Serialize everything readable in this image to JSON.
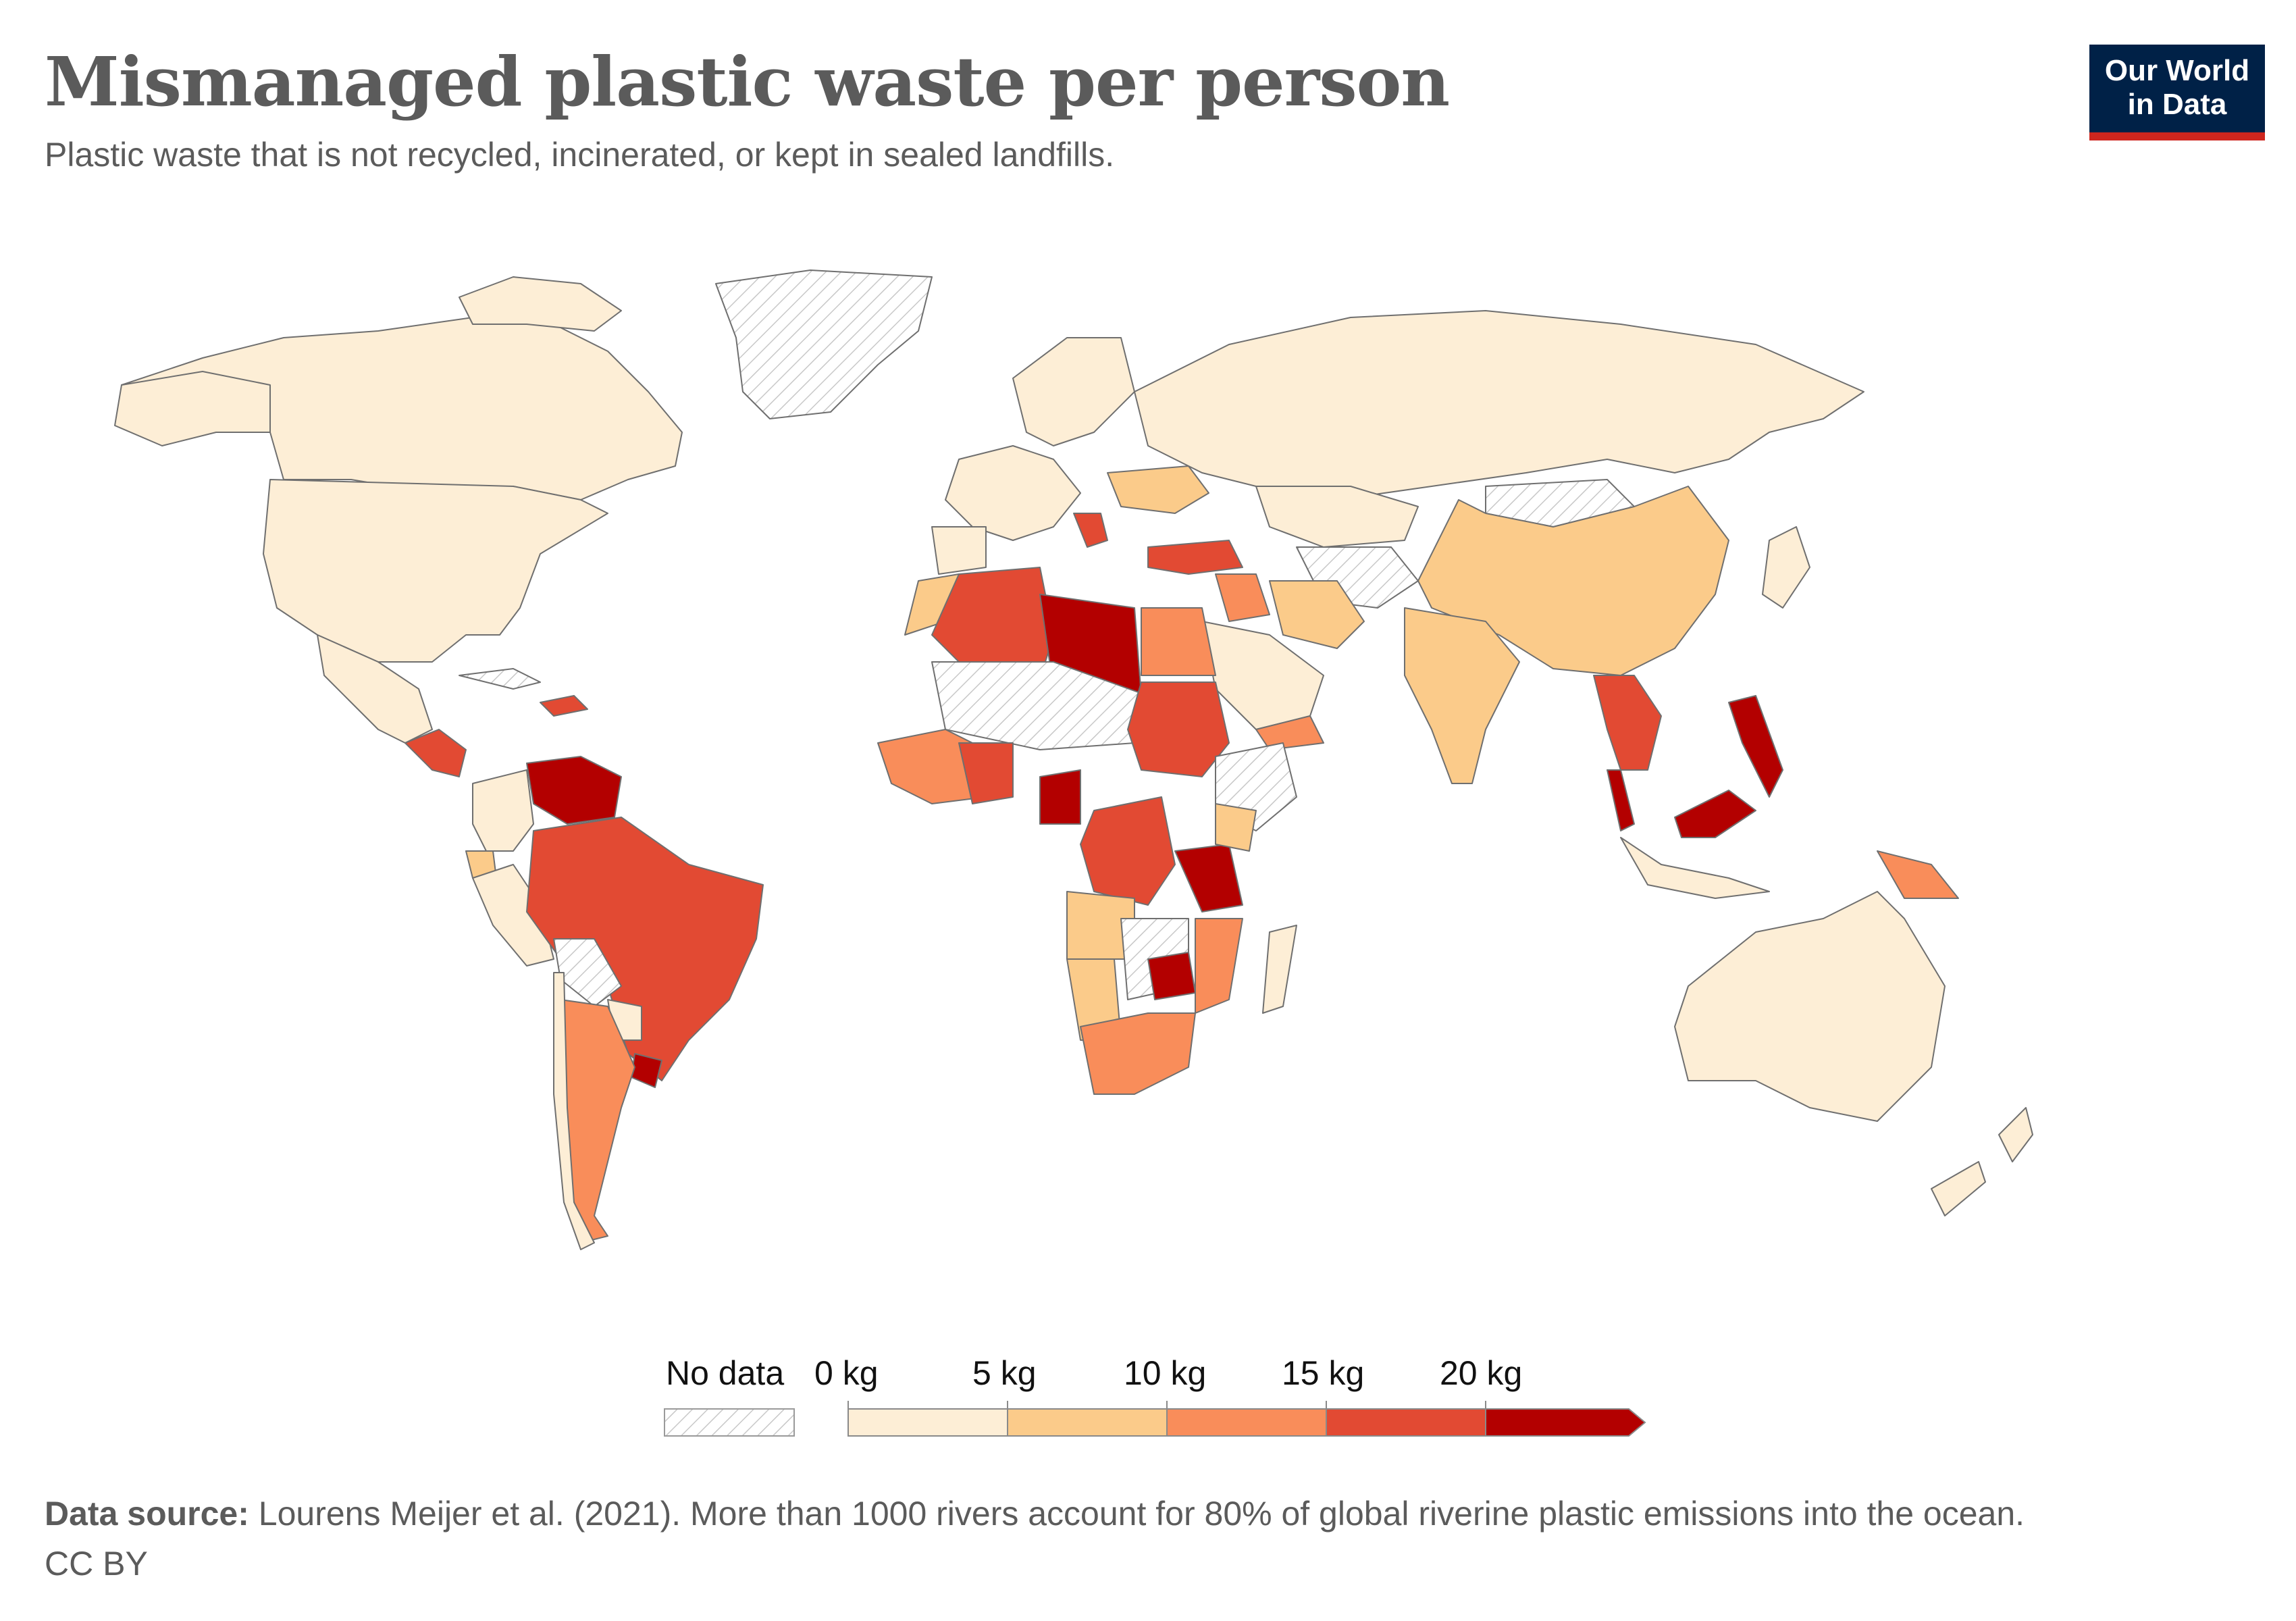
{
  "title": "Mismanaged plastic waste per person",
  "subtitle": "Plastic waste that is not recycled, incinerated, or kept in sealed landfills.",
  "logo": {
    "line1": "Our World",
    "line2": "in Data"
  },
  "legend": {
    "no_data_label": "No data",
    "bins": [
      {
        "label": "0 kg",
        "color": "#fdeed6"
      },
      {
        "label": "5 kg",
        "color": "#fbcb8a"
      },
      {
        "label": "10 kg",
        "color": "#f98d5a"
      },
      {
        "label": "15 kg",
        "color": "#e24a33"
      },
      {
        "label": "20 kg",
        "color": "#b30000"
      }
    ]
  },
  "footer": {
    "source_label": "Data source:",
    "source_text": "Lourens Meijer et al. (2021). More than 1000 rivers account for 80% of global riverine plastic emissions into the ocean.",
    "license": "CC BY"
  },
  "colors": {
    "title": "#5b5b5b",
    "border": "#6f6f6f",
    "no_data_fill": "#ffffff",
    "no_data_hatch": "#c8c8c8"
  }
}
